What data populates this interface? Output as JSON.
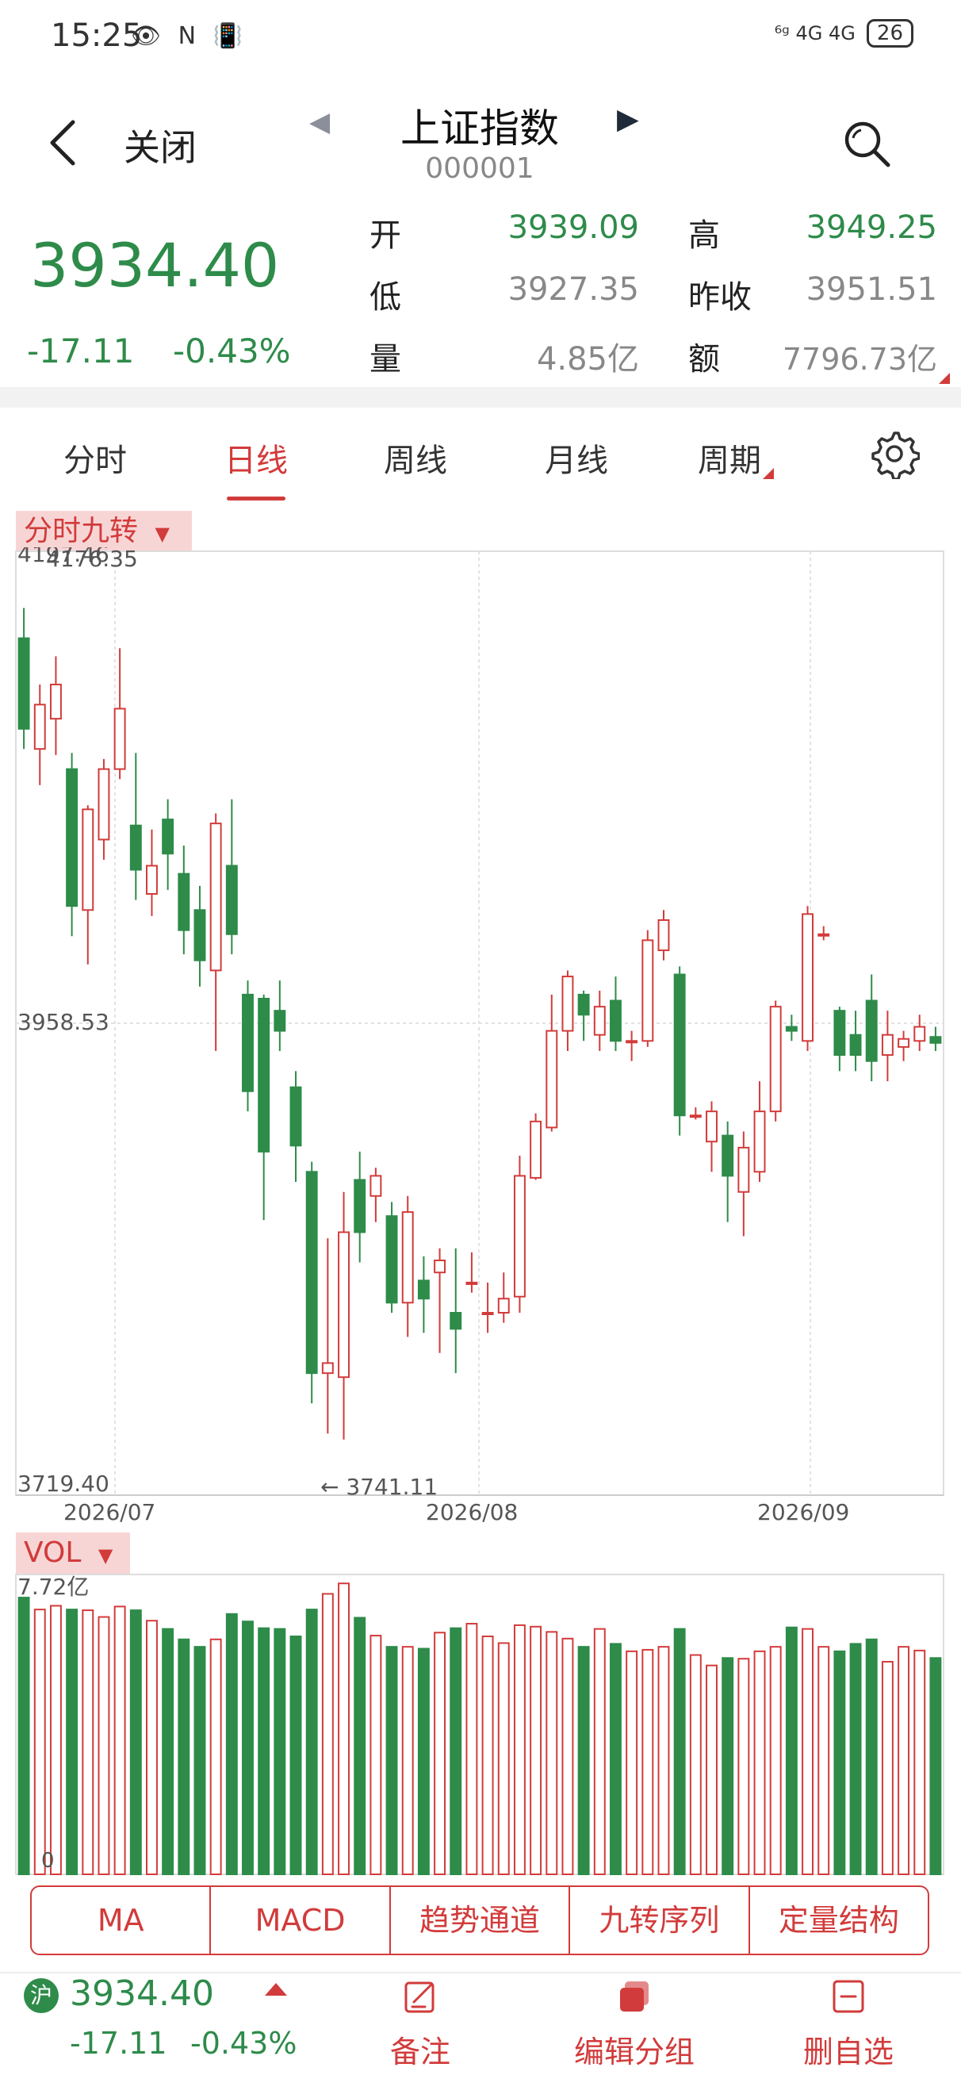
{
  "status_bar": {
    "time": "15:25",
    "left_icons": "👁 N 📳",
    "signal": "⁶ᵍ 4G 4G",
    "battery": "26"
  },
  "header": {
    "close_label": "关闭",
    "title": "上证指数",
    "code": "000001",
    "prev_glyph": "◀",
    "next_glyph": "▶"
  },
  "quote": {
    "price": "3934.40",
    "change": "-17.11",
    "change_pct": "-0.43%",
    "open_label": "开",
    "open": "3939.09",
    "high_label": "高",
    "high": "3949.25",
    "low_label": "低",
    "low": "3927.35",
    "prev_close_label": "昨收",
    "prev_close": "3951.51",
    "volume_label": "量",
    "volume": "4.85亿",
    "amount_label": "额",
    "amount": "7796.73亿",
    "colors": {
      "down": "#2e8b4a",
      "up": "#d23b3b",
      "neutral": "#888888"
    }
  },
  "tabs": [
    {
      "label": "分时",
      "active": false
    },
    {
      "label": "日线",
      "active": true
    },
    {
      "label": "周线",
      "active": false
    },
    {
      "label": "月线",
      "active": false
    },
    {
      "label": "周期",
      "active": false
    }
  ],
  "settings_icon": "gear-icon",
  "main_chart": {
    "indicator_tag": "分时九转",
    "overlay_text": "4197.46",
    "top_left": "4176.35",
    "mid_value": "3958.53",
    "bottom_value": "3719.40",
    "low_marker": "← 3741.11",
    "x_labels": [
      "2026/07",
      "2026/08",
      "2026/09"
    ]
  },
  "chart_data": {
    "type": "candlestick",
    "y_range": [
      3719.4,
      4176.35
    ],
    "candles": [
      [
        4145,
        4100,
        4160,
        4090
      ],
      [
        4090,
        4112,
        4122,
        4072
      ],
      [
        4105,
        4122,
        4136,
        4087
      ],
      [
        4080,
        4012,
        4088,
        3997
      ],
      [
        4010,
        4060,
        4062,
        3983
      ],
      [
        4045,
        4080,
        4085,
        4035
      ],
      [
        4080,
        4110,
        4140,
        4075
      ],
      [
        4052,
        4030,
        4088,
        4015
      ],
      [
        4018,
        4032,
        4050,
        4007
      ],
      [
        4055,
        4038,
        4065,
        4020
      ],
      [
        4028,
        4000,
        4042,
        3988
      ],
      [
        4010,
        3985,
        4022,
        3972
      ],
      [
        3980,
        4053,
        4058,
        3940
      ],
      [
        4032,
        3998,
        4065,
        3988
      ],
      [
        3968,
        3920,
        3975,
        3910
      ],
      [
        3966,
        3890,
        3968,
        3856
      ],
      [
        3960,
        3950,
        3975,
        3940
      ],
      [
        3922,
        3893,
        3930,
        3875
      ],
      [
        3880,
        3780,
        3885,
        3765
      ],
      [
        3780,
        3785,
        3847,
        3750
      ],
      [
        3778,
        3850,
        3870,
        3747
      ],
      [
        3876,
        3850,
        3890,
        3835
      ],
      [
        3868,
        3878,
        3882,
        3855
      ],
      [
        3858,
        3815,
        3865,
        3810
      ],
      [
        3815,
        3860,
        3868,
        3798
      ],
      [
        3826,
        3817,
        3838,
        3800
      ],
      [
        3830,
        3836,
        3842,
        3790
      ],
      [
        3810,
        3802,
        3842,
        3780
      ],
      [
        3825,
        3825,
        3840,
        3820
      ],
      [
        3810,
        3810,
        3825,
        3800
      ],
      [
        3810,
        3817,
        3830,
        3805
      ],
      [
        3818,
        3878,
        3888,
        3810
      ],
      [
        3877,
        3905,
        3909,
        3876
      ],
      [
        3902,
        3950,
        3968,
        3900
      ],
      [
        3950,
        3977,
        3980,
        3940
      ],
      [
        3968,
        3958,
        3970,
        3945
      ],
      [
        3948,
        3962,
        3970,
        3940
      ],
      [
        3965,
        3945,
        3977,
        3940
      ],
      [
        3945,
        3945,
        3950,
        3935
      ],
      [
        3945,
        3995,
        4000,
        3942
      ],
      [
        3990,
        4005,
        4010,
        3985
      ],
      [
        3978,
        3908,
        3982,
        3898
      ],
      [
        3908,
        3908,
        3912,
        3906
      ],
      [
        3895,
        3910,
        3915,
        3880
      ],
      [
        3898,
        3878,
        3905,
        3855
      ],
      [
        3870,
        3892,
        3900,
        3848
      ],
      [
        3880,
        3910,
        3925,
        3875
      ],
      [
        3910,
        3962,
        3965,
        3905
      ],
      [
        3952,
        3950,
        3958,
        3945
      ],
      [
        3945,
        4008,
        4012,
        3940
      ],
      [
        3998,
        3998,
        4002,
        3995
      ],
      [
        3960,
        3938,
        3962,
        3930
      ],
      [
        3948,
        3938,
        3960,
        3930
      ],
      [
        3965,
        3935,
        3978,
        3925
      ],
      [
        3938,
        3948,
        3960,
        3925
      ],
      [
        3942,
        3946,
        3950,
        3935
      ],
      [
        3945,
        3952,
        3958,
        3940
      ],
      [
        3947,
        3944,
        3952,
        3940
      ]
    ],
    "volume": {
      "max_label": "7.72亿",
      "zero_label": "0",
      "values": [
        7.42,
        7.1,
        7.2,
        7.1,
        7.08,
        6.9,
        7.18,
        7.08,
        6.8,
        6.58,
        6.3,
        6.1,
        6.3,
        6.98,
        6.78,
        6.6,
        6.58,
        6.38,
        7.1,
        7.52,
        7.8,
        6.88,
        6.4,
        6.1,
        6.1,
        6.05,
        6.48,
        6.6,
        6.72,
        6.38,
        6.2,
        6.68,
        6.64,
        6.5,
        6.32,
        6.1,
        6.58,
        6.18,
        5.98,
        6.02,
        6.1,
        6.58,
        5.88,
        5.6,
        5.8,
        5.78,
        5.98,
        6.1,
        6.62,
        6.58,
        6.1,
        5.98,
        6.18,
        6.3,
        5.7,
        6.1,
        6.0,
        5.8
      ]
    }
  },
  "vol_tag": "VOL",
  "indicators": [
    "MA",
    "MACD",
    "趋势通道",
    "九转序列",
    "定量结构"
  ],
  "bottom_bar": {
    "market_badge": "沪",
    "price": "3934.40",
    "change": "-17.11",
    "change_pct": "-0.43%",
    "actions": [
      "备注",
      "编辑分组",
      "删自选"
    ]
  }
}
